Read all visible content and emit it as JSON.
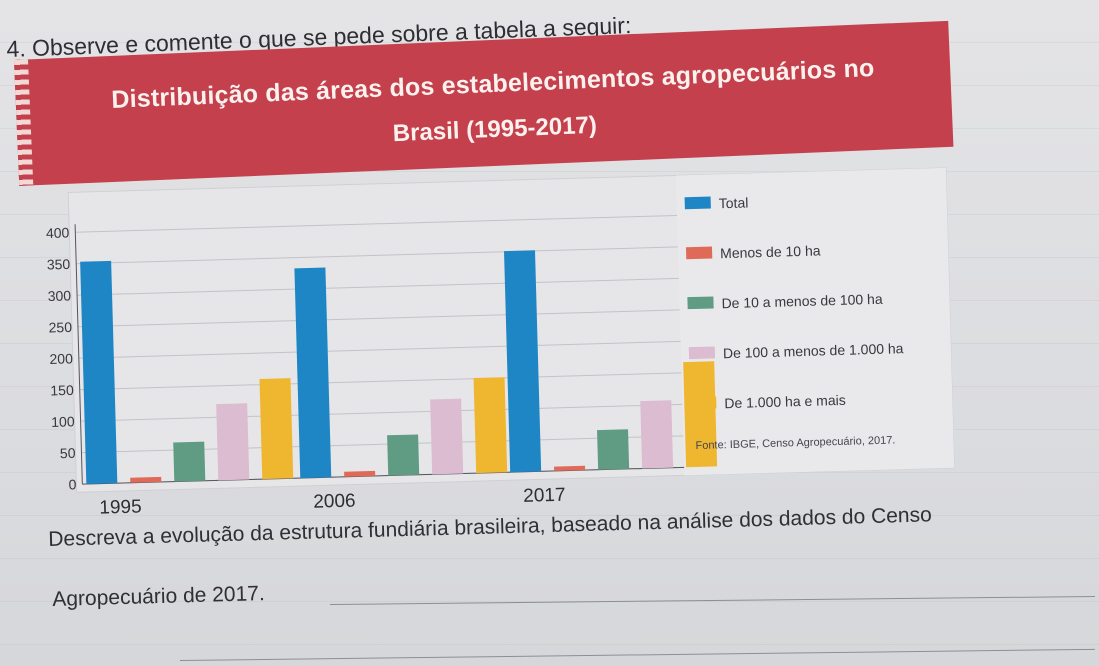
{
  "question": "4. Observe e comente o que se pede sobre a tabela a seguir:",
  "banner": {
    "title_line1": "Distribuição das áreas dos estabelecimentos agropecuários no",
    "title_line2": "Brasil (1995-2017)"
  },
  "prompt": {
    "line1": "Descreva a evolução da estrutura fundiária brasileira, baseado na análise dos dados do Censo",
    "line2": "Agropecuário de 2017."
  },
  "chart_data": {
    "type": "bar",
    "title": "Distribuição das áreas dos estabelecimentos agropecuários no Brasil (1995-2017)",
    "categories": [
      "1995",
      "2006",
      "2017"
    ],
    "ylim": [
      0,
      400
    ],
    "yticks": [
      0,
      50,
      100,
      150,
      200,
      250,
      300,
      350,
      400
    ],
    "grid": true,
    "legend_position": "right",
    "source": "Fonte: IBGE, Censo Agropecuário, 2017.",
    "series": [
      {
        "name": "Total",
        "color": "#1f86c6",
        "values": [
          353,
          333,
          351
        ]
      },
      {
        "name": "Menos de 10 ha",
        "color": "#e06a58",
        "values": [
          8,
          8,
          7
        ]
      },
      {
        "name": "De 10 a menos de 100 ha",
        "color": "#5f9c83",
        "values": [
          62,
          64,
          63
        ]
      },
      {
        "name": "De 100 a menos de 1.000 ha",
        "color": "#dcbcd0",
        "values": [
          121,
          119,
          107
        ]
      },
      {
        "name": "De 1.000 ha e mais",
        "color": "#efb630",
        "values": [
          159,
          151,
          167
        ]
      }
    ]
  }
}
